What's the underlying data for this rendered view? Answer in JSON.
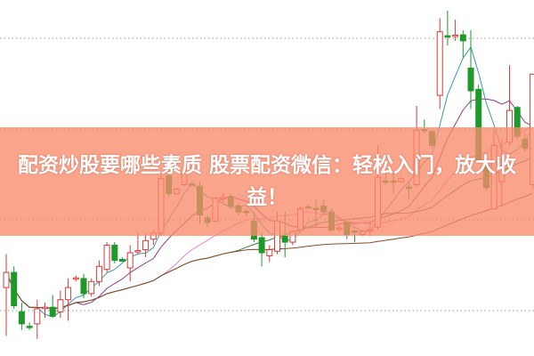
{
  "banner": {
    "text": "配资炒股要哪些素质 股票配资微信：轻松入门，放大收益！"
  },
  "chart_data": {
    "type": "candlestick",
    "title": "",
    "xlabel": "",
    "ylabel": "",
    "grid": "horizontal dotted",
    "colors": {
      "up": "#d83a3a",
      "down": "#1e9a2a",
      "ma_lines": [
        "#3a9aa8",
        "#8c3a8c",
        "#e884d0",
        "#3a7a3a",
        "#8a4a2a"
      ]
    },
    "ma_periods": [
      5,
      10,
      20,
      30,
      60
    ],
    "ohlc_fields": [
      "open",
      "high",
      "low",
      "close"
    ],
    "candles": [
      [
        22.6,
        33.6,
        6.6,
        27.6
      ],
      [
        27.6,
        29.6,
        15.6,
        16.6
      ],
      [
        14.6,
        17.6,
        8.6,
        10.6
      ],
      [
        9.8,
        11.1,
        8.6,
        9.6
      ],
      [
        10.6,
        18.6,
        5.6,
        15.6
      ],
      [
        15.9,
        17.6,
        12.6,
        16.1
      ],
      [
        16.1,
        20.1,
        12.6,
        13.1
      ],
      [
        14.6,
        21.6,
        12.6,
        18.6
      ],
      [
        18.6,
        25.6,
        11.6,
        22.6
      ],
      [
        25.4,
        26.6,
        24.6,
        25.8
      ],
      [
        25.6,
        27.1,
        19.1,
        20.6
      ],
      [
        20.6,
        25.6,
        19.6,
        24.6
      ],
      [
        24.6,
        31.6,
        23.1,
        29.6
      ],
      [
        28.6,
        37.6,
        27.6,
        36.6
      ],
      [
        36.6,
        37.6,
        30.6,
        31.6
      ],
      [
        31.9,
        32.6,
        31.3,
        31.3
      ],
      [
        29.1,
        36.6,
        24.6,
        34.1
      ],
      [
        34.4,
        40.6,
        33.6,
        34.8
      ],
      [
        35.1,
        40.6,
        32.6,
        38.1
      ],
      [
        38.6,
        41.6,
        36.6,
        40.6
      ],
      [
        40.6,
        60.1,
        39.6,
        58.6
      ],
      [
        59.6,
        61.6,
        52.6,
        53.6
      ],
      [
        53.6,
        55.6,
        53.6,
        55.1
      ],
      [
        56.6,
        61.6,
        56.1,
        60.6
      ],
      [
        56.8,
        57.6,
        56.3,
        56.4
      ],
      [
        56.1,
        57.6,
        43.6,
        46.6
      ],
      [
        45.6,
        46.6,
        42.6,
        44.1
      ],
      [
        44.6,
        52.6,
        44.1,
        52.1
      ],
      [
        51.9,
        53.6,
        50.6,
        52.3
      ],
      [
        52.6,
        53.6,
        48.6,
        49.6
      ],
      [
        49.6,
        50.6,
        46.6,
        47.6
      ],
      [
        47.8,
        48.6,
        46.1,
        47.4
      ],
      [
        44.6,
        47.6,
        37.6,
        38.6
      ],
      [
        39.1,
        40.6,
        29.6,
        34.1
      ],
      [
        33.1,
        36.6,
        31.1,
        35.1
      ],
      [
        34.6,
        47.6,
        33.6,
        44.6
      ],
      [
        39.6,
        47.6,
        32.6,
        37.6
      ],
      [
        37.6,
        41.6,
        36.6,
        41.1
      ],
      [
        41.6,
        49.6,
        40.6,
        48.6
      ],
      [
        49.3,
        50.1,
        48.6,
        48.9
      ],
      [
        48.8,
        51.6,
        42.6,
        48.4
      ],
      [
        49.6,
        51.6,
        46.6,
        47.6
      ],
      [
        47.6,
        48.6,
        41.1,
        41.6
      ],
      [
        41.9,
        43.1,
        41.1,
        42.3
      ],
      [
        44.1,
        44.6,
        38.6,
        40.1
      ],
      [
        41.3,
        41.6,
        37.6,
        40.9
      ],
      [
        40.1,
        41.6,
        39.6,
        41.1
      ],
      [
        41.4,
        44.6,
        39.6,
        41.8
      ],
      [
        42.6,
        69.6,
        41.6,
        59.1
      ],
      [
        57.8,
        60.1,
        56.6,
        57.4
      ],
      [
        57.8,
        60.6,
        53.6,
        57.4
      ],
      [
        57.6,
        59.1,
        57.1,
        58.6
      ],
      [
        55.8,
        57.6,
        51.6,
        55.4
      ],
      [
        56.6,
        82.6,
        55.6,
        74.6
      ],
      [
        74.8,
        78.1,
        73.6,
        74.4
      ],
      [
        74.1,
        74.6,
        68.6,
        69.6
      ],
      [
        86.1,
        111.6,
        81.6,
        107.1
      ],
      [
        105.8,
        114.1,
        102.6,
        105.4
      ],
      [
        105.6,
        111.1,
        104.1,
        106.0
      ],
      [
        106.1,
        107.6,
        98.6,
        104.1
      ],
      [
        95.1,
        107.6,
        81.6,
        87.6
      ],
      [
        88.1,
        89.6,
        63.6,
        64.6
      ],
      [
        63.1,
        63.6,
        54.6,
        55.6
      ],
      [
        48.6,
        74.6,
        48.6,
        69.6
      ],
      [
        57.6,
        71.6,
        49.6,
        62.1
      ],
      [
        70.6,
        96.1,
        69.6,
        81.1
      ],
      [
        82.1,
        82.6,
        71.6,
        72.6
      ],
      [
        71.6,
        73.6,
        67.6,
        68.6
      ],
      [
        56.6,
        93.1,
        55.6,
        93.1
      ]
    ]
  }
}
